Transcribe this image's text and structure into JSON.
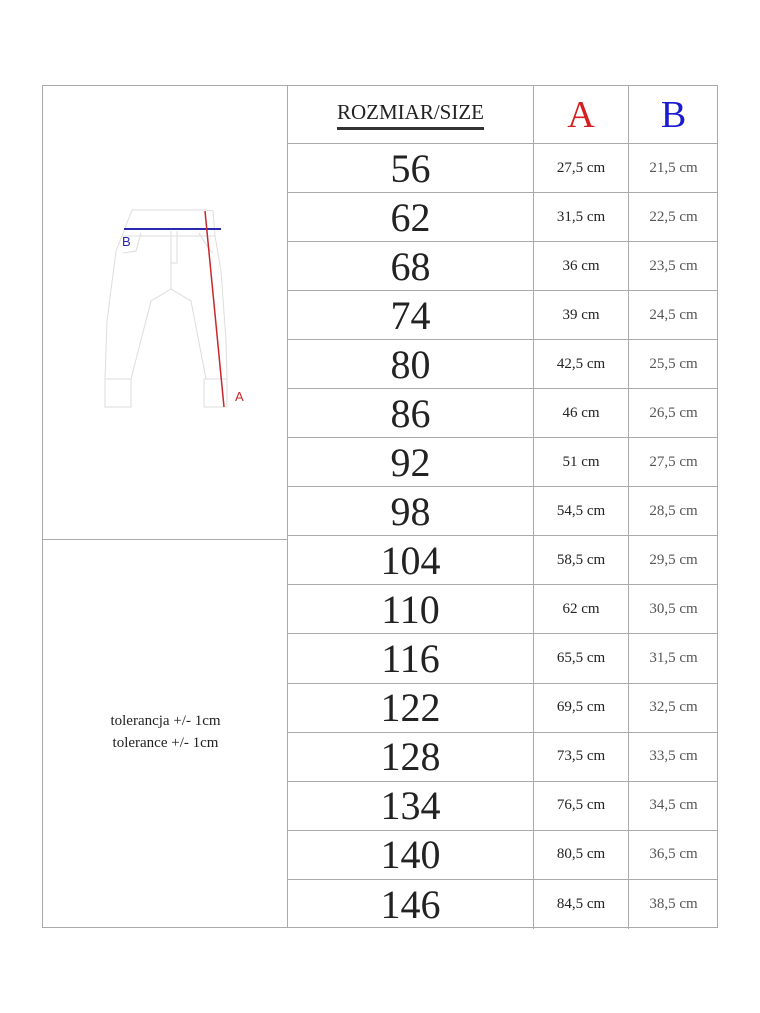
{
  "header": {
    "size_label": "ROZMIAR/SIZE",
    "col_a": "A",
    "col_b": "B"
  },
  "diagram": {
    "label_a": "A",
    "label_b": "B",
    "color_a": "#c8282a",
    "color_b": "#2a2ab0"
  },
  "tolerance": [
    "tolerancja +/- 1cm",
    "tolerance +/- 1cm"
  ],
  "rows": [
    {
      "size": "56",
      "a": "27,5 cm",
      "b": "21,5 cm"
    },
    {
      "size": "62",
      "a": "31,5 cm",
      "b": "22,5 cm"
    },
    {
      "size": "68",
      "a": "36 cm",
      "b": "23,5 cm"
    },
    {
      "size": "74",
      "a": "39 cm",
      "b": "24,5 cm"
    },
    {
      "size": "80",
      "a": "42,5 cm",
      "b": "25,5 cm"
    },
    {
      "size": "86",
      "a": "46 cm",
      "b": "26,5 cm"
    },
    {
      "size": "92",
      "a": "51 cm",
      "b": "27,5 cm"
    },
    {
      "size": "98",
      "a": "54,5 cm",
      "b": "28,5 cm"
    },
    {
      "size": "104",
      "a": "58,5 cm",
      "b": "29,5 cm"
    },
    {
      "size": "110",
      "a": "62 cm",
      "b": "30,5 cm"
    },
    {
      "size": "116",
      "a": "65,5 cm",
      "b": "31,5 cm"
    },
    {
      "size": "122",
      "a": "69,5 cm",
      "b": "32,5 cm"
    },
    {
      "size": "128",
      "a": "73,5 cm",
      "b": "33,5 cm"
    },
    {
      "size": "134",
      "a": "76,5 cm",
      "b": "34,5 cm"
    },
    {
      "size": "140",
      "a": "80,5 cm",
      "b": "36,5 cm"
    },
    {
      "size": "146",
      "a": "84,5 cm",
      "b": "38,5 cm"
    }
  ]
}
